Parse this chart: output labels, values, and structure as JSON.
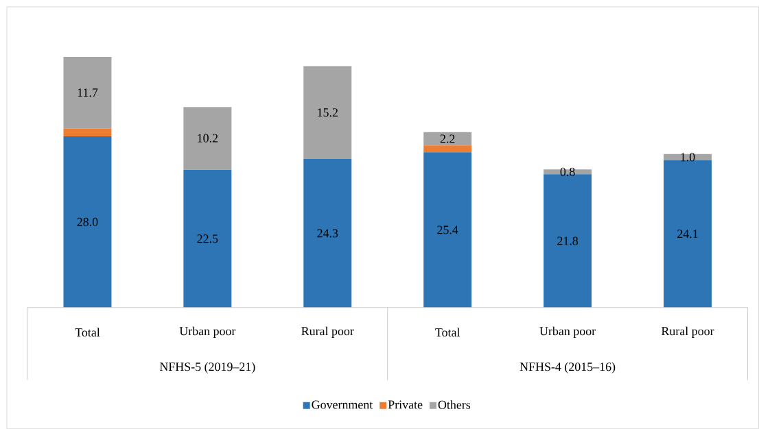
{
  "chart_data": {
    "type": "bar",
    "stacked": true,
    "categories": [
      "Total",
      "Urban poor",
      "Rural poor",
      "Total",
      "Urban poor",
      "Rural poor"
    ],
    "annotations": [
      "NFHS-5 (2019–21)",
      "NFHS-4 (2015–16)"
    ],
    "series": [
      {
        "name": "Government",
        "color": "#2e75b6",
        "values": [
          28.0,
          22.5,
          24.3,
          25.4,
          21.8,
          24.1
        ],
        "value_labels": [
          "28.0",
          "22.5",
          "24.3",
          "25.4",
          "21.8",
          "24.1"
        ]
      },
      {
        "name": "Private",
        "color": "#ed7d31",
        "values": [
          1.3,
          0.1,
          0.0,
          1.1,
          0.0,
          0.0
        ]
      },
      {
        "name": "Others",
        "color": "#a5a5a5",
        "values": [
          11.7,
          10.2,
          15.2,
          2.2,
          0.8,
          1.0
        ],
        "value_labels": [
          "11.7",
          "10.2",
          "15.2",
          "2.2",
          "0.8",
          "1.0"
        ]
      }
    ],
    "legend": "bottom"
  }
}
